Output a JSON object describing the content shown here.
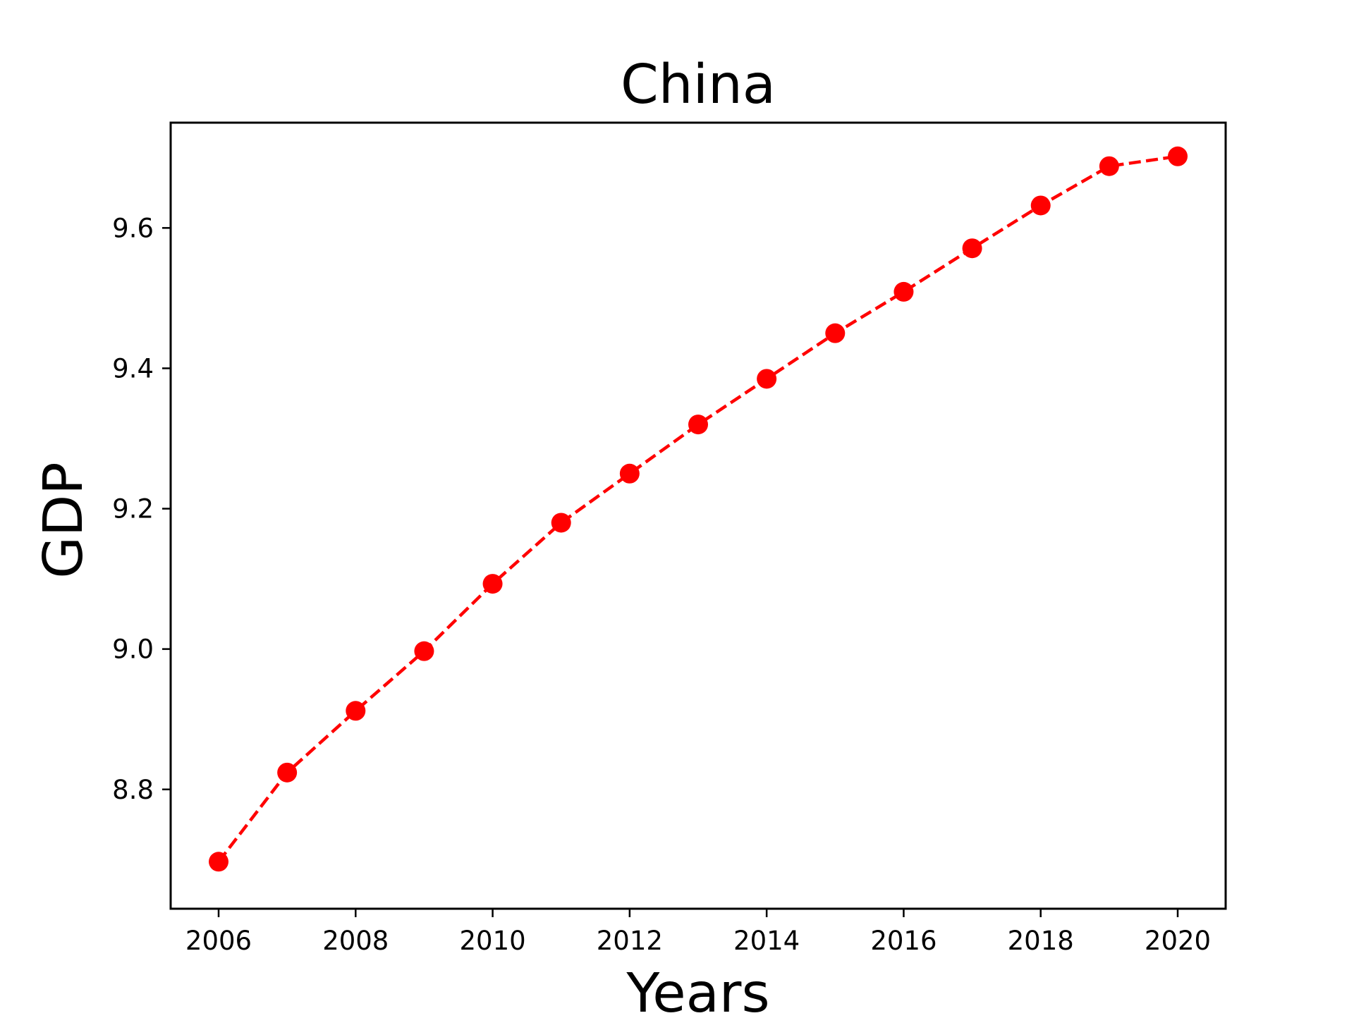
{
  "chart_data": {
    "type": "line",
    "title": "China",
    "xlabel": "Years",
    "ylabel": "GDP",
    "x": [
      2006,
      2007,
      2008,
      2009,
      2010,
      2011,
      2012,
      2013,
      2014,
      2015,
      2016,
      2017,
      2018,
      2019,
      2020
    ],
    "series": [
      {
        "name": "",
        "values": [
          8.697,
          8.824,
          8.912,
          8.997,
          9.093,
          9.18,
          9.25,
          9.32,
          9.385,
          9.45,
          9.509,
          9.571,
          9.632,
          9.688,
          9.702
        ],
        "color": "#ff0000",
        "line_style": "dashed",
        "marker": "circle"
      }
    ],
    "xlim": [
      2005.3,
      2020.7
    ],
    "ylim": [
      8.63,
      9.75
    ],
    "x_ticks": [
      "2006",
      "2008",
      "2010",
      "2012",
      "2014",
      "2016",
      "2018",
      "2020"
    ],
    "y_ticks": [
      "8.8",
      "9.0",
      "9.2",
      "9.4",
      "9.6"
    ],
    "grid": false,
    "legend": "none"
  }
}
